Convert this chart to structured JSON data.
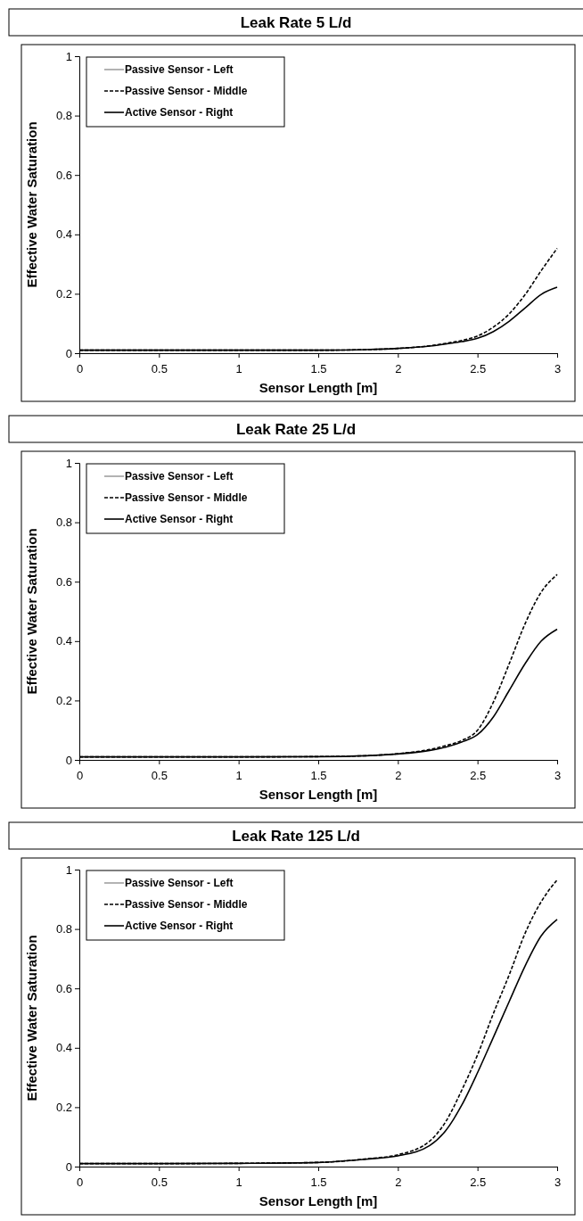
{
  "chart_data": [
    {
      "type": "line",
      "title": "Leak Rate 5 L/d",
      "xlabel": "Sensor Length [m]",
      "ylabel": "Effective Water Saturation",
      "x": [
        0,
        0.5,
        1,
        1.5,
        1.8,
        2,
        2.2,
        2.3,
        2.4,
        2.5,
        2.6,
        2.7,
        2.8,
        2.9,
        3
      ],
      "xlim": [
        0,
        3
      ],
      "xticks": [
        0,
        0.5,
        1,
        1.5,
        2,
        2.5,
        3
      ],
      "ylim": [
        0,
        1
      ],
      "yticks": [
        0,
        0.2,
        0.4,
        0.6,
        0.8,
        1
      ],
      "legend": "top left",
      "marker": "none",
      "series": [
        {
          "name": "Passive Sensor - Left",
          "color": "#a0a0a0",
          "line_style": "solid",
          "values": [
            null,
            null,
            null,
            null,
            null,
            null,
            null,
            null,
            null,
            null,
            null,
            null,
            null,
            null,
            null
          ]
        },
        {
          "name": "Passive Sensor - Middle",
          "color": "#000000",
          "line_style": "dashed",
          "values": [
            0.01,
            0.01,
            0.01,
            0.01,
            0.012,
            0.016,
            0.025,
            0.033,
            0.043,
            0.058,
            0.088,
            0.133,
            0.198,
            0.278,
            0.353
          ]
        },
        {
          "name": "Active Sensor - Right",
          "color": "#000000",
          "line_style": "solid",
          "values": [
            0.01,
            0.01,
            0.01,
            0.01,
            0.012,
            0.016,
            0.024,
            0.031,
            0.039,
            0.05,
            0.073,
            0.108,
            0.153,
            0.198,
            0.222
          ]
        }
      ]
    },
    {
      "type": "line",
      "title": "Leak Rate 25 L/d",
      "xlabel": "Sensor Length [m]",
      "ylabel": "Effective Water Saturation",
      "x": [
        0,
        0.5,
        1,
        1.5,
        1.8,
        2,
        2.2,
        2.3,
        2.4,
        2.5,
        2.6,
        2.7,
        2.8,
        2.9,
        3
      ],
      "xlim": [
        0,
        3
      ],
      "xticks": [
        0,
        0.5,
        1,
        1.5,
        2,
        2.5,
        3
      ],
      "ylim": [
        0,
        1
      ],
      "yticks": [
        0,
        0.2,
        0.4,
        0.6,
        0.8,
        1
      ],
      "legend": "top left",
      "marker": "none",
      "series": [
        {
          "name": "Passive Sensor - Left",
          "color": "#a0a0a0",
          "line_style": "solid",
          "values": [
            null,
            null,
            null,
            null,
            null,
            null,
            null,
            null,
            null,
            null,
            null,
            null,
            null,
            null,
            null
          ]
        },
        {
          "name": "Passive Sensor - Middle",
          "color": "#000000",
          "line_style": "dashed",
          "values": [
            0.01,
            0.01,
            0.01,
            0.011,
            0.014,
            0.021,
            0.035,
            0.048,
            0.065,
            0.1,
            0.195,
            0.325,
            0.46,
            0.565,
            0.624
          ]
        },
        {
          "name": "Active Sensor - Right",
          "color": "#000000",
          "line_style": "solid",
          "values": [
            0.01,
            0.01,
            0.01,
            0.011,
            0.014,
            0.02,
            0.032,
            0.043,
            0.06,
            0.085,
            0.145,
            0.235,
            0.325,
            0.4,
            0.44
          ]
        }
      ]
    },
    {
      "type": "line",
      "title": "Leak Rate 125 L/d",
      "xlabel": "Sensor Length [m]",
      "ylabel": "Effective Water Saturation",
      "x": [
        0,
        0.5,
        1,
        1.5,
        1.8,
        2,
        2.2,
        2.3,
        2.4,
        2.5,
        2.6,
        2.7,
        2.8,
        2.9,
        3
      ],
      "xlim": [
        0,
        3
      ],
      "xticks": [
        0,
        0.5,
        1,
        1.5,
        2,
        2.5,
        3
      ],
      "ylim": [
        0,
        1
      ],
      "yticks": [
        0,
        0.2,
        0.4,
        0.6,
        0.8,
        1
      ],
      "legend": "top left",
      "marker": "none",
      "series": [
        {
          "name": "Passive Sensor - Left",
          "color": "#a0a0a0",
          "line_style": "solid",
          "values": [
            null,
            null,
            null,
            null,
            null,
            null,
            null,
            null,
            null,
            null,
            null,
            null,
            null,
            null,
            null
          ]
        },
        {
          "name": "Passive Sensor - Middle",
          "color": "#000000",
          "line_style": "dashed",
          "values": [
            0.01,
            0.01,
            0.011,
            0.014,
            0.026,
            0.04,
            0.086,
            0.151,
            0.256,
            0.376,
            0.516,
            0.647,
            0.787,
            0.892,
            0.965
          ]
        },
        {
          "name": "Active Sensor - Right",
          "color": "#000000",
          "line_style": "solid",
          "values": [
            0.01,
            0.01,
            0.011,
            0.014,
            0.025,
            0.036,
            0.071,
            0.121,
            0.206,
            0.316,
            0.436,
            0.557,
            0.677,
            0.777,
            0.832
          ]
        }
      ]
    }
  ]
}
